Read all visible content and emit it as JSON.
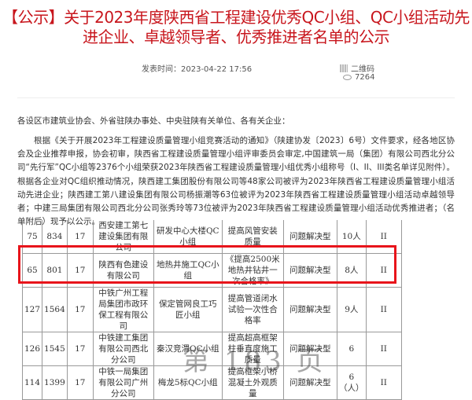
{
  "title": "【公示】关于2023年度陕西省工程建设优秀QC小组、QC小组活动先进企业、卓越领导者、优秀推进者名单的公示",
  "meta": {
    "published": "发表时间：2023-04-22 17:56",
    "qr_label": "二维码",
    "views": "7264"
  },
  "salutation": "各设区市建筑业协会、外省驻陕办事处、中央驻陕有关单位、各有关企业：",
  "paragraph": "根据《关于开展2023年工程建设质量管理小组竞赛活动的通知》（陕建协发〔2023〕6号）文件要求，经各地区协会及企业推荐申报，协会初审，陕西省工程建设质量管理小组评审委员会审定,中国建筑一局（集团）有限公司西北分公司“先行军”QC小组等2376个小组荣获2023年陕西省工程建设质量管理小组优秀小组称号（I、II、III类名单详见附件）。根据各企业对QC组织推动情况，陕西建工集团股份有限公司等48家公司被评为2023年陕西省工程建设质量管理小组活动先进企业；陕西建工第八建设集团有限公司杨振潮等63位被评为2023年陕西省工程建设质量管理小组活动卓越领导者；中建三局集团有限公司西北分公司张秀玲等73位被评为2023年陕西省工程建设质量管理小组活动优秀推进者；（名单附后）现予以公示。",
  "table": {
    "rows": [
      [
        "75",
        "834",
        "17",
        "西安建工第七建设集团有限公司",
        "研发中心大楼QC小组",
        "提高风管安装质量",
        "问题解决型",
        "10人",
        "II"
      ],
      [
        "65",
        "801",
        "17",
        "陕西有色建设有限公司",
        "地热井施工QC小组",
        "《提高2500米地热井钻井一次合格率》",
        "问题解决型",
        "8人",
        "II"
      ],
      [
        "127",
        "1564",
        "17",
        "中铁广州工程局集团市政环保工程有限公司",
        "保定管网良工巧匠小组",
        "提高管道闭水试验一次性合格率",
        "问题解决型",
        "9人",
        "II"
      ],
      [
        "126",
        "1545",
        "17",
        "中铁建工集团有限公司西北分公司",
        "秦汉竞渭QC小组",
        "提高超高框架柱垂直度施工质量",
        "问题解决型",
        "6",
        "II"
      ],
      [
        "114",
        "1399",
        "17",
        "中铁一局集团有限公司广州分公司",
        "梅龙5标QC小组",
        "提高框架小桥混凝土外观质量",
        "问题解决型",
        "6（人）",
        "II"
      ]
    ]
  },
  "watermark": "第 183 页",
  "highlight_color": "#e8141b"
}
